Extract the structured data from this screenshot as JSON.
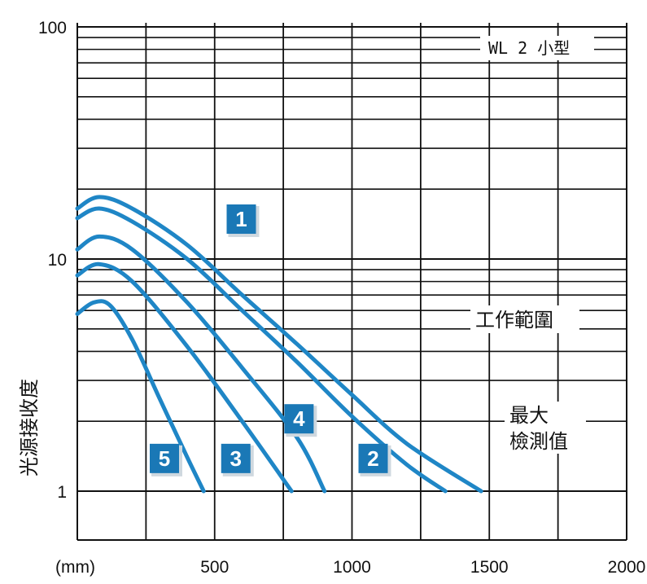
{
  "chart_data": {
    "type": "line",
    "xlabel": "(mm)",
    "ylabel": "光源接收度",
    "x_ticks": [
      "500",
      "1000",
      "1500",
      "2000"
    ],
    "y_ticks": [
      "1",
      "10",
      "100"
    ],
    "xlim": [
      0,
      2000
    ],
    "ylim": [
      0.7,
      100
    ],
    "y_scale": "log",
    "grid": true,
    "line_color": "#1f86c6",
    "badge_color": "#1a78b6",
    "annotations": {
      "model": "WL 2 小型",
      "range": "工作範圍",
      "max_line1": "最大",
      "max_line2": "檢測值"
    },
    "series": [
      {
        "name": "1",
        "x": [
          0,
          80,
          200,
          400,
          600,
          800,
          1000,
          1200,
          1470
        ],
        "y": [
          16.5,
          18.5,
          16.5,
          11.5,
          7.0,
          4.3,
          2.6,
          1.6,
          1.0
        ]
      },
      {
        "name": "2",
        "x": [
          0,
          80,
          200,
          400,
          600,
          800,
          1000,
          1200,
          1340
        ],
        "y": [
          15.0,
          16.5,
          14.5,
          10.0,
          6.0,
          3.6,
          2.1,
          1.3,
          1.0
        ]
      },
      {
        "name": "3",
        "x": [
          0,
          80,
          200,
          400,
          600,
          780
        ],
        "y": [
          8.5,
          9.5,
          8.0,
          4.2,
          2.0,
          1.0
        ]
      },
      {
        "name": "4",
        "x": [
          0,
          80,
          200,
          400,
          600,
          800,
          900
        ],
        "y": [
          11.0,
          12.5,
          11.0,
          6.5,
          3.4,
          1.7,
          1.0
        ]
      },
      {
        "name": "5",
        "x": [
          0,
          60,
          120,
          200,
          300,
          400,
          460
        ],
        "y": [
          5.8,
          6.5,
          6.3,
          4.5,
          2.5,
          1.4,
          1.0
        ]
      }
    ],
    "badges": [
      {
        "label": "1",
        "x": 600,
        "y": 14.5
      },
      {
        "label": "2",
        "x": 1080,
        "y": 1.35
      },
      {
        "label": "3",
        "x": 580,
        "y": 1.35
      },
      {
        "label": "4",
        "x": 810,
        "y": 2.0
      },
      {
        "label": "5",
        "x": 320,
        "y": 1.35
      }
    ]
  }
}
